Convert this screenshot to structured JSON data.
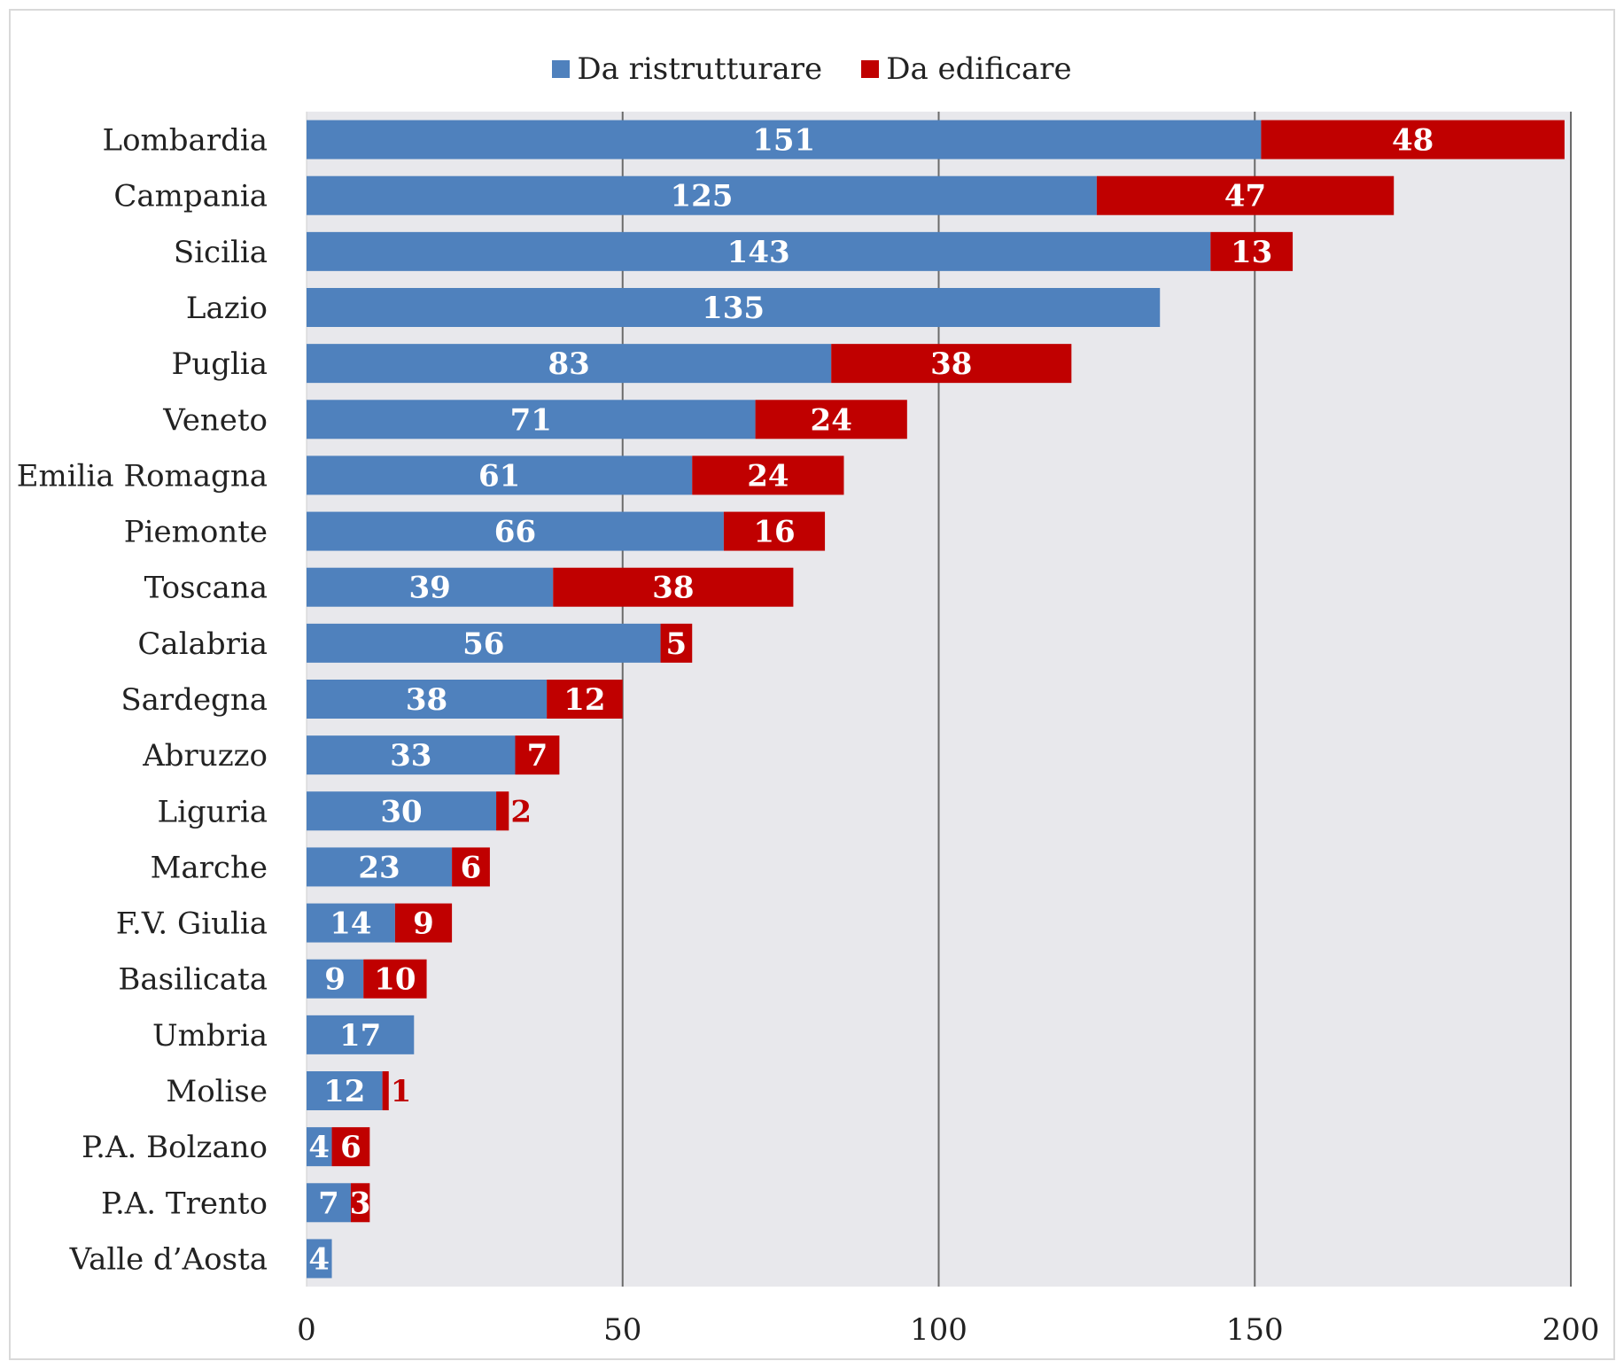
{
  "chart_data": {
    "type": "bar",
    "orientation": "horizontal",
    "stacked": true,
    "title": "",
    "xlabel": "",
    "ylabel": "",
    "xlim": [
      0,
      200
    ],
    "ticks": [
      0,
      50,
      100,
      150,
      200
    ],
    "grid": true,
    "legend_position": "top-center",
    "categories": [
      "Lombardia",
      "Campania",
      "Sicilia",
      "Lazio",
      "Puglia",
      "Veneto",
      "Emilia Romagna",
      "Piemonte",
      "Toscana",
      "Calabria",
      "Sardegna",
      "Abruzzo",
      "Liguria",
      "Marche",
      "F.V. Giulia",
      "Basilicata",
      "Umbria",
      "Molise",
      "P.A. Bolzano",
      "P.A. Trento",
      "Valle d’Aosta"
    ],
    "series": [
      {
        "name": "Da ristrutturare",
        "color": "#4f81bd",
        "values": [
          151,
          125,
          143,
          135,
          83,
          71,
          61,
          66,
          39,
          56,
          38,
          33,
          30,
          23,
          14,
          9,
          17,
          12,
          4,
          7,
          4
        ]
      },
      {
        "name": "Da edificare",
        "color": "#c00000",
        "values": [
          48,
          47,
          13,
          0,
          38,
          24,
          24,
          16,
          38,
          5,
          12,
          7,
          2,
          6,
          9,
          10,
          0,
          1,
          6,
          3,
          0
        ]
      }
    ]
  }
}
